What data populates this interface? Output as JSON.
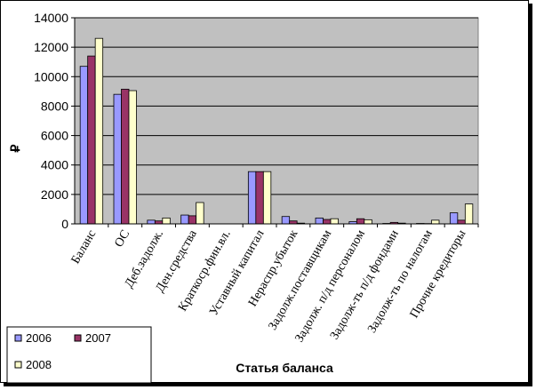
{
  "chart_data": {
    "type": "bar",
    "title": "",
    "xlabel": "Статья баланса",
    "ylabel": "₽",
    "ylim": [
      0,
      14000
    ],
    "yticks": [
      0,
      2000,
      4000,
      6000,
      8000,
      10000,
      12000,
      14000
    ],
    "grid": true,
    "legend": "bottom-left",
    "categories": [
      "Баланс",
      "ОС",
      "Деб.задолж.",
      "Ден.средства",
      "Краткоср.фин.вл.",
      "Уставный капитал",
      "Нераспр.убыток",
      "Задолж.поставщикам",
      "Задолж. п/д персоналом",
      "Задолж-ть п/д фондами",
      "Задолж-ть по налогам",
      "Прочие кредиторы"
    ],
    "series": [
      {
        "name": "2006",
        "color": "#9999ff",
        "values": [
          10700,
          8800,
          250,
          600,
          0,
          3550,
          500,
          400,
          150,
          30,
          30,
          750
        ]
      },
      {
        "name": "2007",
        "color": "#993366",
        "values": [
          11400,
          9150,
          200,
          550,
          0,
          3550,
          200,
          300,
          350,
          100,
          20,
          250
        ]
      },
      {
        "name": "2008",
        "color": "#ffffcc",
        "values": [
          12600,
          9050,
          400,
          1450,
          0,
          3550,
          50,
          350,
          280,
          50,
          250,
          1350
        ]
      }
    ]
  }
}
